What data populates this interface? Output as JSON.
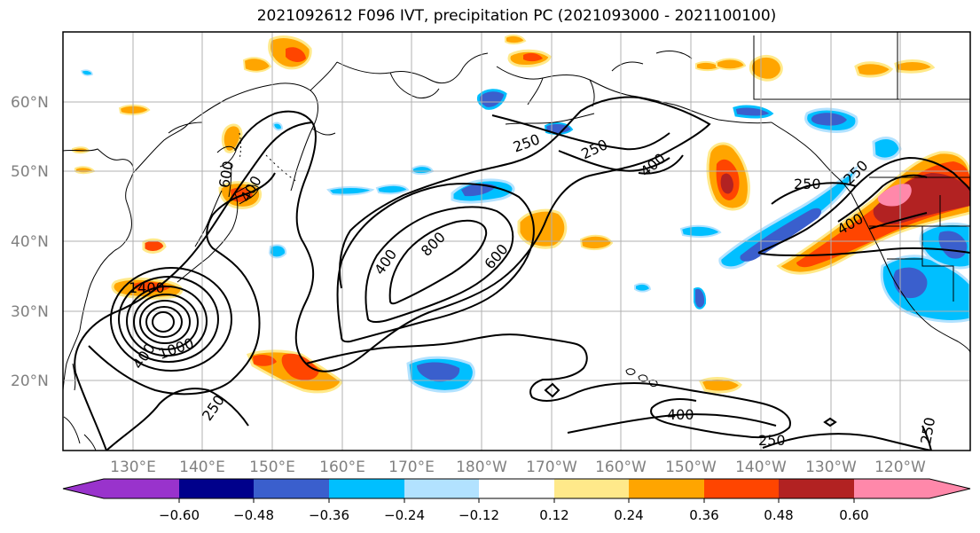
{
  "title": "2021092612 F096 IVT, precipitation PC (2021093000 - 2021100100)",
  "lat_labels": [
    "60°N",
    "50°N",
    "40°N",
    "30°N",
    "20°N"
  ],
  "lon_labels": [
    "130°E",
    "140°E",
    "150°E",
    "160°E",
    "170°E",
    "180°W",
    "170°W",
    "160°W",
    "150°W",
    "140°W",
    "130°W",
    "120°W"
  ],
  "contour_labels": [
    "250",
    "250",
    "400",
    "400",
    "400",
    "600",
    "800",
    "600",
    "400",
    "250",
    "250",
    "400",
    "400",
    "250",
    "250",
    "250",
    "1000",
    "1400"
  ],
  "colorbar": {
    "ticks": [
      "−0.60",
      "−0.48",
      "−0.36",
      "−0.24",
      "−0.12",
      "0.12",
      "0.24",
      "0.36",
      "0.48",
      "0.60"
    ],
    "colors": [
      "#9933cc",
      "#00008b",
      "#3a5fcd",
      "#00bfff",
      "#b2e2ff",
      "#ffffff",
      "#ffe98a",
      "#ffa500",
      "#ff4500",
      "#b22222",
      "#ff88aa"
    ]
  }
}
